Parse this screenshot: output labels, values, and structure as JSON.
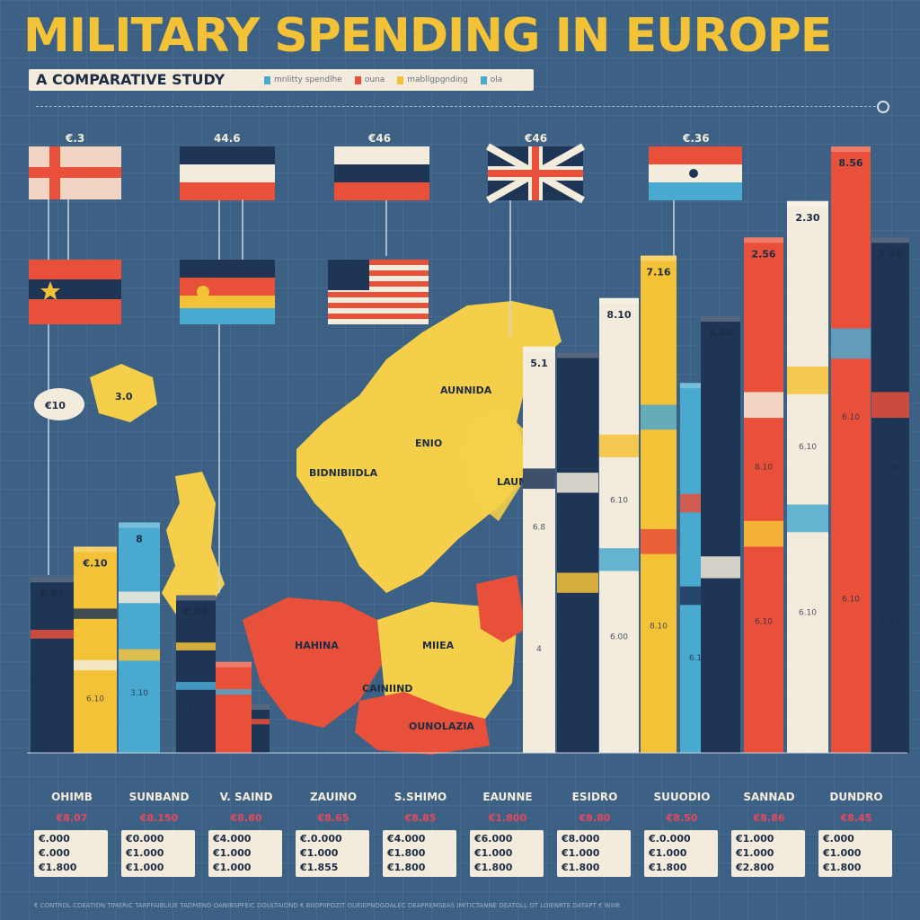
{
  "title": "MILITARY SPENDING IN EUROPE",
  "subtitle": "A COMPARATIVE STUDY",
  "legend": [
    {
      "label": "mnlitty spendlhe",
      "color": "#4aa9cf"
    },
    {
      "label": "ouna",
      "color": "#e8503a"
    },
    {
      "label": "mabllgpgnding",
      "color": "#f4c237"
    },
    {
      "label": "ola",
      "color": "#4aa9cf"
    }
  ],
  "colors": {
    "background": "#3d6184",
    "title": "#f4c237",
    "navy": "#1e3556",
    "cream": "#f3ecdc",
    "red": "#e8503a",
    "yellow": "#f4c237",
    "cyan": "#4aa9cf",
    "map_yellow": "#f5cf49"
  },
  "map_labels": [
    "AUNNIDA",
    "BIDNIBIIDLA",
    "ENIO",
    "LAUNA",
    "HAHINA",
    "MIIEA",
    "CAINIIND",
    "OUNOLAZIA"
  ],
  "flags": [
    {
      "label": "€.3",
      "type": "cross"
    },
    {
      "label": "44.6",
      "type": "tricolor_navy"
    },
    {
      "label": "€46",
      "type": "tricolor_ru"
    },
    {
      "label": "€46",
      "type": "union"
    },
    {
      "label": "€.36",
      "type": "tricolor_para"
    },
    {
      "label": "",
      "type": "red_star"
    },
    {
      "label": "",
      "type": "germany"
    },
    {
      "label": "",
      "type": "usa"
    }
  ],
  "chart_data": {
    "type": "bar",
    "title": "MILITARY SPENDING IN EUROPE",
    "subtitle": "A COMPARATIVE STUDY",
    "ylim": [
      0,
      100
    ],
    "bars": [
      {
        "label": "8.97",
        "value": 29,
        "color": "#1e3556",
        "mid": [
          "",
          ""
        ]
      },
      {
        "label": "€.10",
        "value": 34,
        "color": "#f4c237",
        "mid": [
          "6.10",
          ""
        ]
      },
      {
        "label": "8",
        "value": 38,
        "color": "#4aa9cf",
        "mid": [
          "3.10",
          ""
        ]
      },
      {
        "label": "€.05",
        "value": 26,
        "color": "#1e3556",
        "mid": [
          "3.10",
          ""
        ]
      },
      {
        "label": "",
        "value": 15,
        "color": "#e8503a",
        "mid": [
          "",
          ""
        ]
      },
      {
        "label": "",
        "value": 8,
        "color": "#1e3556",
        "mid": [
          "",
          ""
        ]
      },
      {
        "label": "5.1",
        "value": 67,
        "color": "#f3ecdc",
        "mid": [
          "4",
          "6.8"
        ]
      },
      {
        "label": "",
        "value": 66,
        "color": "#1e3556",
        "mid": [
          "",
          ""
        ]
      },
      {
        "label": "8.10",
        "value": 75,
        "color": "#f3ecdc",
        "mid": [
          "6.00",
          "6.10"
        ]
      },
      {
        "label": "7.16",
        "value": 82,
        "color": "#f4c237",
        "mid": [
          "8.10",
          ""
        ]
      },
      {
        "label": "",
        "value": 61,
        "color": "#4aa9cf",
        "mid": [
          "6.10",
          ""
        ]
      },
      {
        "label": "8.60",
        "value": 72,
        "color": "#1e3556",
        "mid": [
          "",
          ""
        ]
      },
      {
        "label": "2.56",
        "value": 85,
        "color": "#e8503a",
        "mid": [
          "6.10",
          "8.10"
        ]
      },
      {
        "label": "2.30",
        "value": 91,
        "color": "#f3ecdc",
        "mid": [
          "6.10",
          "6.10"
        ]
      },
      {
        "label": "8.56",
        "value": 100,
        "color": "#e8503a",
        "mid": [
          "6.10",
          "6.10"
        ]
      },
      {
        "label": "7.56",
        "value": 85,
        "color": "#1e3556",
        "mid": [
          "6.10",
          "6.10"
        ]
      }
    ]
  },
  "table": [
    {
      "name": "OHIMB",
      "total": "€8.07",
      "rows": [
        "€.000",
        "€.000",
        "€1.800"
      ]
    },
    {
      "name": "SUNBAND",
      "total": "€8.150",
      "rows": [
        "€0.000",
        "€1.000",
        "€1.000"
      ]
    },
    {
      "name": "V. SAIND",
      "total": "€8.80",
      "rows": [
        "€4.000",
        "€1.000",
        "€1.000"
      ]
    },
    {
      "name": "ZAUINO",
      "total": "€8.65",
      "rows": [
        "€.0.000",
        "€1.000",
        "€1.855"
      ]
    },
    {
      "name": "S.SHIMO",
      "total": "€8.85",
      "rows": [
        "€4.000",
        "€1.800",
        "€1.800"
      ]
    },
    {
      "name": "EAUNNE",
      "total": "€1.800",
      "rows": [
        "€6.000",
        "€1.000",
        "€1.800"
      ]
    },
    {
      "name": "ESIDRO",
      "total": "€8.80",
      "rows": [
        "€8.000",
        "€1.000",
        "€1.800"
      ]
    },
    {
      "name": "SUUODIO",
      "total": "€8.50",
      "rows": [
        "€.0.000",
        "€1.000",
        "€1.800"
      ]
    },
    {
      "name": "SANNAD",
      "total": "€8.86",
      "rows": [
        "€1.000",
        "€1.000",
        "€2.800"
      ]
    },
    {
      "name": "DUNDRO",
      "total": "€8.45",
      "rows": [
        "€.000",
        "€1.000",
        "€1.800"
      ]
    }
  ],
  "footer": "€ CONTROL CDEATION TIMERIC TARFFAIBLIUE TADMEND OANIBSPFEIC DOULTAIOND € BIIOPIIPOZIT OUEIEPNDGDALEC DEAPREMSEAS IMITICTANNE DEATOLL OT LOIENRTE DATAPT € WIIIE"
}
